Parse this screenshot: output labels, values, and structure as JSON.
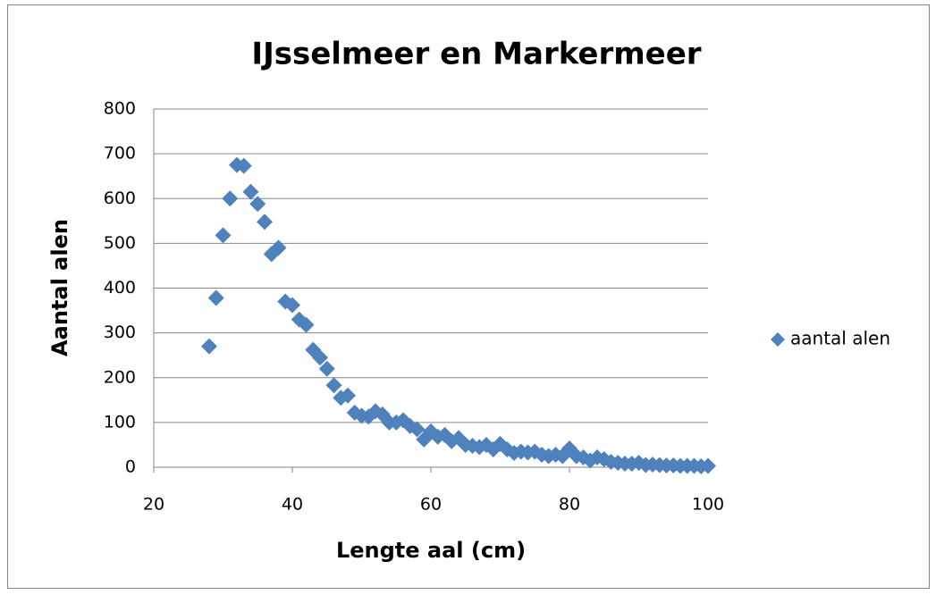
{
  "chart_data": {
    "type": "scatter",
    "title": "IJsselmeer en Markermeer",
    "x_label": "Lengte aal (cm)",
    "y_label": "Aantal alen",
    "series": [
      {
        "name": "aantal alen",
        "color": "#4f81bd",
        "x": [
          28,
          29,
          30,
          31,
          32,
          33,
          34,
          35,
          36,
          37,
          38,
          39,
          40,
          41,
          42,
          43,
          44,
          45,
          46,
          47,
          48,
          49,
          50,
          51,
          52,
          53,
          54,
          55,
          56,
          57,
          58,
          59,
          60,
          61,
          62,
          63,
          64,
          65,
          66,
          67,
          68,
          69,
          70,
          71,
          72,
          73,
          74,
          75,
          76,
          77,
          78,
          79,
          80,
          81,
          82,
          83,
          84,
          85,
          86,
          87,
          88,
          89,
          90,
          91,
          92,
          93,
          94,
          95,
          96,
          97,
          98,
          99,
          100
        ],
        "values": [
          270,
          378,
          518,
          600,
          675,
          673,
          615,
          588,
          548,
          476,
          490,
          370,
          362,
          330,
          318,
          262,
          245,
          220,
          183,
          155,
          160,
          122,
          115,
          113,
          125,
          118,
          100,
          100,
          105,
          92,
          85,
          62,
          80,
          68,
          72,
          58,
          65,
          50,
          48,
          45,
          50,
          40,
          52,
          40,
          32,
          35,
          33,
          35,
          28,
          25,
          28,
          25,
          42,
          25,
          22,
          15,
          22,
          18,
          12,
          10,
          8,
          8,
          10,
          5,
          6,
          5,
          4,
          4,
          3,
          3,
          3,
          2,
          3
        ]
      }
    ],
    "xlim": [
      20,
      100
    ],
    "xticks": [
      20,
      40,
      60,
      80,
      100
    ],
    "ylim": [
      0,
      800
    ],
    "yticks": [
      0,
      100,
      200,
      300,
      400,
      500,
      600,
      700,
      800
    ],
    "grid": true,
    "legend": "right"
  }
}
